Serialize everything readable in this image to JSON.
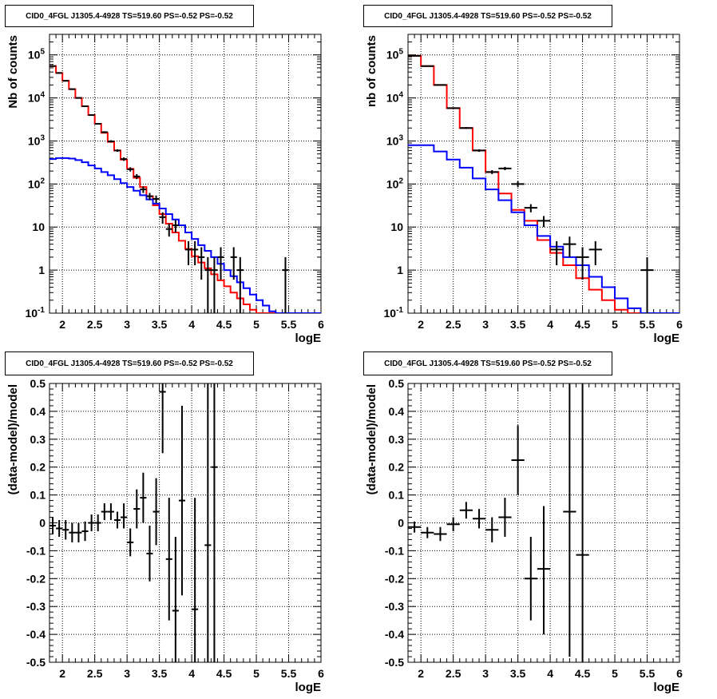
{
  "chart_data": [
    {
      "type": "line",
      "title": "CID0_4FGL J1305.4-4928 TS=519.60 PS=-0.52 PS=-0.52",
      "xlabel": "logE",
      "ylabel": "Nb of counts",
      "xlim": [
        1.8,
        6
      ],
      "ylim": [
        0.1,
        300000
      ],
      "yscale": "log",
      "grid": true,
      "x_ticks": [
        "2",
        "2.5",
        "3",
        "3.5",
        "4",
        "4.5",
        "5",
        "5.5",
        "6"
      ],
      "y_ticks": [
        "10^-1",
        "1",
        "10",
        "10^2",
        "10^3",
        "10^4",
        "10^5"
      ],
      "bin_width": 0.1,
      "series": [
        {
          "color": "#ff0000",
          "x_edges_start": 1.8,
          "values": [
            55000,
            38000,
            25000,
            16000,
            10000,
            6400,
            4000,
            2500,
            1550,
            950,
            600,
            370,
            225,
            140,
            85,
            52,
            32,
            20,
            12,
            7.5,
            4.8,
            3.1,
            2.1,
            1.5,
            1.1,
            0.8,
            0.58,
            0.42,
            0.3,
            0.22,
            0.16,
            0.12,
            0.1,
            0.1,
            0.1,
            0.1,
            0.1,
            0.1,
            0.1,
            0.1,
            0.1,
            0.1
          ]
        },
        {
          "color": "#0000ff",
          "x_edges_start": 1.8,
          "values": [
            380,
            400,
            400,
            390,
            360,
            320,
            270,
            230,
            190,
            160,
            130,
            105,
            85,
            70,
            55,
            44,
            35,
            27,
            20,
            15,
            11,
            7.5,
            5.3,
            3.8,
            2.8,
            2.0,
            1.4,
            1.0,
            0.72,
            0.52,
            0.38,
            0.27,
            0.2,
            0.15,
            0.11,
            0.1,
            0.1,
            0.1,
            0.1,
            0.1,
            0.1,
            0.1
          ]
        }
      ],
      "points": [
        {
          "x": 1.85,
          "y": 55000,
          "lo": 54000,
          "hi": 56000
        },
        {
          "x": 1.95,
          "y": 38000,
          "lo": 37200,
          "hi": 38800
        },
        {
          "x": 2.05,
          "y": 25000,
          "lo": 24400,
          "hi": 25600
        },
        {
          "x": 2.15,
          "y": 16000,
          "lo": 15500,
          "hi": 16500
        },
        {
          "x": 2.25,
          "y": 10000,
          "lo": 9700,
          "hi": 10300
        },
        {
          "x": 2.35,
          "y": 6400,
          "lo": 6200,
          "hi": 6600
        },
        {
          "x": 2.45,
          "y": 4000,
          "lo": 3850,
          "hi": 4150
        },
        {
          "x": 2.55,
          "y": 2500,
          "lo": 2400,
          "hi": 2600
        },
        {
          "x": 2.65,
          "y": 1600,
          "lo": 1520,
          "hi": 1680
        },
        {
          "x": 2.75,
          "y": 980,
          "lo": 920,
          "hi": 1040
        },
        {
          "x": 2.85,
          "y": 600,
          "lo": 560,
          "hi": 640
        },
        {
          "x": 2.95,
          "y": 380,
          "lo": 345,
          "hi": 415
        },
        {
          "x": 3.05,
          "y": 220,
          "lo": 195,
          "hi": 245
        },
        {
          "x": 3.15,
          "y": 150,
          "lo": 130,
          "hi": 170
        },
        {
          "x": 3.25,
          "y": 75,
          "lo": 62,
          "hi": 88
        },
        {
          "x": 3.35,
          "y": 52,
          "lo": 42,
          "hi": 62
        },
        {
          "x": 3.45,
          "y": 45,
          "lo": 36,
          "hi": 54
        },
        {
          "x": 3.55,
          "y": 17,
          "lo": 12,
          "hi": 22
        },
        {
          "x": 3.65,
          "y": 9,
          "lo": 6,
          "hi": 12
        },
        {
          "x": 3.75,
          "y": 11,
          "lo": 7.5,
          "hi": 14.5
        },
        {
          "x": 3.95,
          "y": 3,
          "lo": 1.3,
          "hi": 4.7
        },
        {
          "x": 4.05,
          "y": 3,
          "lo": 1.3,
          "hi": 4.7
        },
        {
          "x": 4.15,
          "y": 2,
          "lo": 0.6,
          "hi": 3.4
        },
        {
          "x": 4.25,
          "y": 1,
          "lo": 0.1,
          "hi": 2
        },
        {
          "x": 4.35,
          "y": 1,
          "lo": 0.1,
          "hi": 2
        },
        {
          "x": 4.45,
          "y": 2,
          "lo": 0.6,
          "hi": 3.4
        },
        {
          "x": 4.65,
          "y": 2,
          "lo": 0.6,
          "hi": 3.4
        },
        {
          "x": 4.75,
          "y": 1,
          "lo": 0.1,
          "hi": 2
        },
        {
          "x": 5.45,
          "y": 1,
          "lo": 0.1,
          "hi": 2
        }
      ]
    },
    {
      "type": "line",
      "title": "CID0_4FGL J1305.4-4928 TS=519.60 PS=-0.52 PS=-0.52",
      "xlabel": "logE",
      "ylabel": "nb of counts",
      "xlim": [
        1.8,
        6
      ],
      "ylim": [
        0.1,
        300000
      ],
      "yscale": "log",
      "grid": true,
      "x_ticks": [
        "2",
        "2.5",
        "3",
        "3.5",
        "4",
        "4.5",
        "5",
        "5.5",
        "6"
      ],
      "y_ticks": [
        "10^-1",
        "1",
        "10",
        "10^2",
        "10^3",
        "10^4",
        "10^5"
      ],
      "bin_width": 0.2,
      "series": [
        {
          "color": "#ff0000",
          "x_edges_start": 1.8,
          "values": [
            95000,
            55000,
            20000,
            5800,
            2000,
            600,
            190,
            60,
            25,
            14,
            5,
            2.5,
            1.3,
            0.65,
            0.35,
            0.2,
            0.12,
            0.1,
            0.1,
            0.1,
            0.1
          ]
        },
        {
          "color": "#0000ff",
          "x_edges_start": 1.8,
          "values": [
            800,
            800,
            570,
            370,
            240,
            135,
            75,
            42,
            22,
            11,
            6.2,
            3.5,
            2.0,
            1.3,
            0.7,
            0.4,
            0.22,
            0.13,
            0.1,
            0.1,
            0.1
          ]
        }
      ],
      "points": [
        {
          "x": 1.9,
          "y": 95000,
          "lo": 94000,
          "hi": 96000
        },
        {
          "x": 2.1,
          "y": 55000,
          "lo": 54200,
          "hi": 55800
        },
        {
          "x": 2.3,
          "y": 20000,
          "lo": 19500,
          "hi": 20500
        },
        {
          "x": 2.5,
          "y": 5800,
          "lo": 5600,
          "hi": 6000
        },
        {
          "x": 2.7,
          "y": 2000,
          "lo": 1900,
          "hi": 2100
        },
        {
          "x": 2.9,
          "y": 600,
          "lo": 560,
          "hi": 640
        },
        {
          "x": 3.1,
          "y": 190,
          "lo": 170,
          "hi": 210
        },
        {
          "x": 3.3,
          "y": 230,
          "lo": 210,
          "hi": 250
        },
        {
          "x": 3.5,
          "y": 100,
          "lo": 85,
          "hi": 115
        },
        {
          "x": 3.7,
          "y": 28,
          "lo": 22,
          "hi": 34
        },
        {
          "x": 3.9,
          "y": 14,
          "lo": 10,
          "hi": 18
        },
        {
          "x": 4.1,
          "y": 3,
          "lo": 1.3,
          "hi": 4.7
        },
        {
          "x": 4.3,
          "y": 4,
          "lo": 2,
          "hi": 6
        },
        {
          "x": 4.5,
          "y": 2,
          "lo": 0.6,
          "hi": 3.4
        },
        {
          "x": 4.7,
          "y": 3,
          "lo": 1.3,
          "hi": 4.7
        },
        {
          "x": 5.5,
          "y": 1,
          "lo": 0.1,
          "hi": 2
        }
      ]
    },
    {
      "type": "scatter",
      "title": "CID0_4FGL J1305.4-4928 TS=519.60 PS=-0.52 PS=-0.52",
      "xlabel": "logE",
      "ylabel": "(data-model)/model",
      "xlim": [
        1.8,
        6
      ],
      "ylim": [
        -0.5,
        0.5
      ],
      "grid": true,
      "x_ticks": [
        "2",
        "2.5",
        "3",
        "3.5",
        "4",
        "4.5",
        "5",
        "5.5",
        "6"
      ],
      "y_ticks": [
        "-0.5",
        "-0.4",
        "-0.3",
        "-0.2",
        "-0.1",
        "0",
        "0.1",
        "0.2",
        "0.3",
        "0.4",
        "0.5"
      ],
      "bin_width": 0.1,
      "points": [
        {
          "x": 1.85,
          "y": -0.01,
          "lo": -0.04,
          "hi": 0.02
        },
        {
          "x": 1.95,
          "y": -0.02,
          "lo": -0.05,
          "hi": 0.01
        },
        {
          "x": 2.05,
          "y": -0.025,
          "lo": -0.06,
          "hi": 0.01
        },
        {
          "x": 2.15,
          "y": -0.035,
          "lo": -0.07,
          "hi": 0.0
        },
        {
          "x": 2.25,
          "y": -0.035,
          "lo": -0.07,
          "hi": 0.0
        },
        {
          "x": 2.35,
          "y": -0.03,
          "lo": -0.065,
          "hi": 0.005
        },
        {
          "x": 2.45,
          "y": 0.0,
          "lo": -0.03,
          "hi": 0.03
        },
        {
          "x": 2.55,
          "y": 0.0,
          "lo": -0.03,
          "hi": 0.03
        },
        {
          "x": 2.65,
          "y": 0.04,
          "lo": 0.01,
          "hi": 0.07
        },
        {
          "x": 2.75,
          "y": 0.04,
          "lo": 0.01,
          "hi": 0.07
        },
        {
          "x": 2.85,
          "y": 0.01,
          "lo": -0.02,
          "hi": 0.04
        },
        {
          "x": 2.95,
          "y": 0.02,
          "lo": -0.02,
          "hi": 0.07
        },
        {
          "x": 3.05,
          "y": -0.07,
          "lo": -0.12,
          "hi": -0.02
        },
        {
          "x": 3.15,
          "y": 0.05,
          "lo": -0.02,
          "hi": 0.12
        },
        {
          "x": 3.25,
          "y": 0.09,
          "lo": 0.0,
          "hi": 0.18
        },
        {
          "x": 3.35,
          "y": -0.11,
          "lo": -0.21,
          "hi": -0.01
        },
        {
          "x": 3.45,
          "y": 0.04,
          "lo": -0.08,
          "hi": 0.16
        },
        {
          "x": 3.55,
          "y": 0.47,
          "lo": 0.25,
          "hi": 0.5
        },
        {
          "x": 3.65,
          "y": -0.13,
          "lo": -0.35,
          "hi": 0.09
        },
        {
          "x": 3.75,
          "y": -0.315,
          "lo": -0.5,
          "hi": -0.05
        },
        {
          "x": 3.85,
          "y": 0.08,
          "lo": -0.26,
          "hi": 0.42
        },
        {
          "x": 4.05,
          "y": -0.31,
          "lo": -0.5,
          "hi": 0.09
        },
        {
          "x": 4.25,
          "y": -0.08,
          "lo": -0.5,
          "hi": 0.5
        },
        {
          "x": 4.35,
          "y": 0.2,
          "lo": -0.5,
          "hi": 0.5
        }
      ]
    },
    {
      "type": "scatter",
      "title": "CID0_4FGL J1305.4-4928 TS=519.60 PS=-0.52 PS=-0.52",
      "xlabel": "logE",
      "ylabel": "(data-model)/model",
      "xlim": [
        1.8,
        6
      ],
      "ylim": [
        -0.5,
        0.5
      ],
      "grid": true,
      "x_ticks": [
        "2",
        "2.5",
        "3",
        "3.5",
        "4",
        "4.5",
        "5",
        "5.5",
        "6"
      ],
      "y_ticks": [
        "-0.5",
        "-0.4",
        "-0.3",
        "-0.2",
        "-0.1",
        "0",
        "0.1",
        "0.2",
        "0.3",
        "0.4",
        "0.5"
      ],
      "bin_width": 0.2,
      "points": [
        {
          "x": 1.9,
          "y": -0.015,
          "lo": -0.035,
          "hi": 0.005
        },
        {
          "x": 2.1,
          "y": -0.035,
          "lo": -0.055,
          "hi": -0.015
        },
        {
          "x": 2.3,
          "y": -0.04,
          "lo": -0.065,
          "hi": -0.015
        },
        {
          "x": 2.5,
          "y": -0.005,
          "lo": -0.03,
          "hi": 0.02
        },
        {
          "x": 2.7,
          "y": 0.045,
          "lo": 0.015,
          "hi": 0.075
        },
        {
          "x": 2.9,
          "y": 0.015,
          "lo": -0.02,
          "hi": 0.05
        },
        {
          "x": 3.1,
          "y": -0.025,
          "lo": -0.07,
          "hi": 0.02
        },
        {
          "x": 3.3,
          "y": 0.02,
          "lo": -0.05,
          "hi": 0.09
        },
        {
          "x": 3.5,
          "y": 0.225,
          "lo": 0.1,
          "hi": 0.35
        },
        {
          "x": 3.7,
          "y": -0.2,
          "lo": -0.35,
          "hi": -0.05
        },
        {
          "x": 3.9,
          "y": -0.165,
          "lo": -0.4,
          "hi": 0.06
        },
        {
          "x": 4.3,
          "y": 0.04,
          "lo": -0.48,
          "hi": 0.5
        },
        {
          "x": 4.5,
          "y": -0.115,
          "lo": -0.5,
          "hi": 0.5
        }
      ]
    }
  ]
}
